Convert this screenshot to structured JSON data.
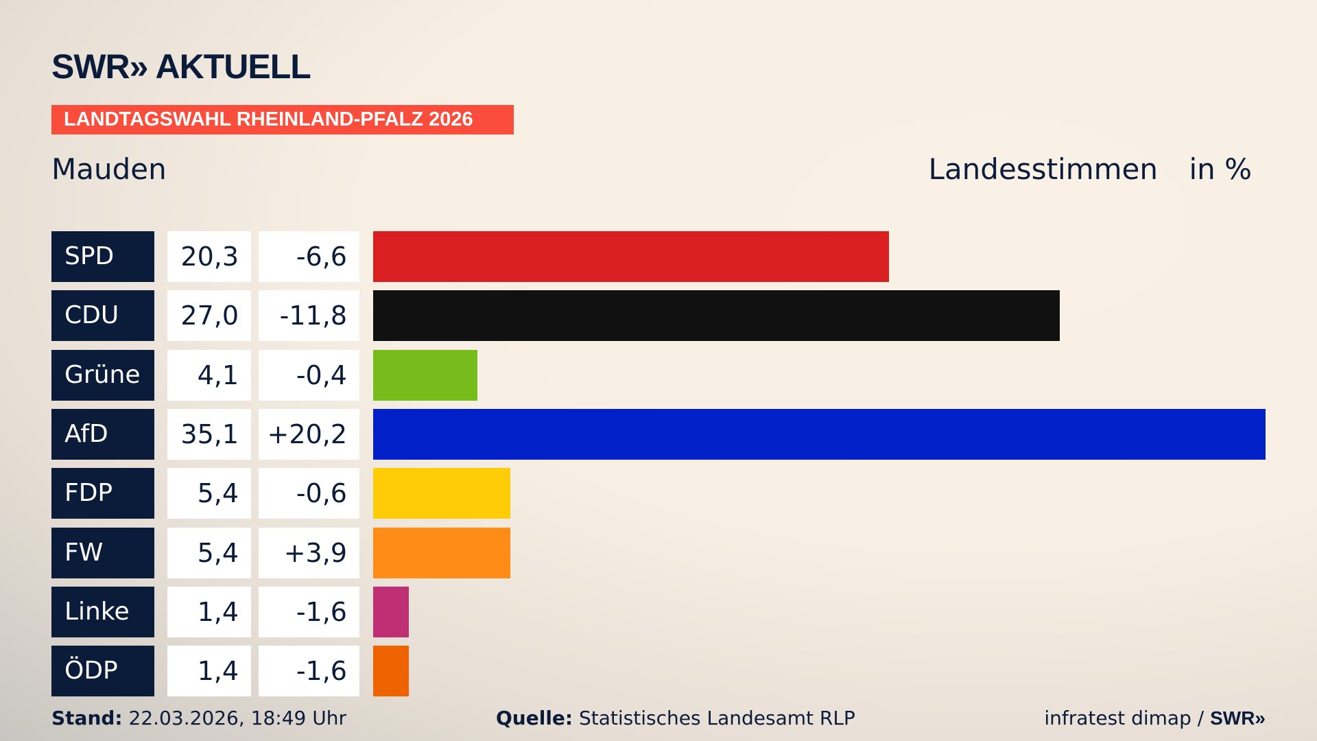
{
  "header": {
    "logo": "SWR» AKTUELL",
    "banner": "LANDTAGSWAHL RHEINLAND-PFALZ 2026",
    "region": "Mauden",
    "measure": "Landesstimmen",
    "unit": "in %"
  },
  "chart_data": {
    "type": "bar",
    "orientation": "horizontal",
    "categories": [
      "SPD",
      "CDU",
      "Grüne",
      "AfD",
      "FDP",
      "FW",
      "Linke",
      "ÖDP"
    ],
    "values": [
      20.3,
      27.0,
      4.1,
      35.1,
      5.4,
      5.4,
      1.4,
      1.4
    ],
    "values_label": [
      "20,3",
      "27,0",
      "4,1",
      "35,1",
      "5,4",
      "5,4",
      "1,4",
      "1,4"
    ],
    "diff_label": [
      "-6,6",
      "-11,8",
      "-0,4",
      "+20,2",
      "-0,6",
      "+3,9",
      "-1,6",
      "-1,6"
    ],
    "colors": [
      "#d91f20",
      "#111111",
      "#78bc1b",
      "#0021c8",
      "#ffcc07",
      "#ff8c16",
      "#be2f73",
      "#ef6200"
    ]
  },
  "footer": {
    "stand_label": "Stand:",
    "stand": "22.03.2026, 18:49 Uhr",
    "source_label": "Quelle:",
    "source": "Statistisches Landesamt RLP",
    "credit": "infratest dimap / ",
    "credit_logo": "SWR»"
  }
}
